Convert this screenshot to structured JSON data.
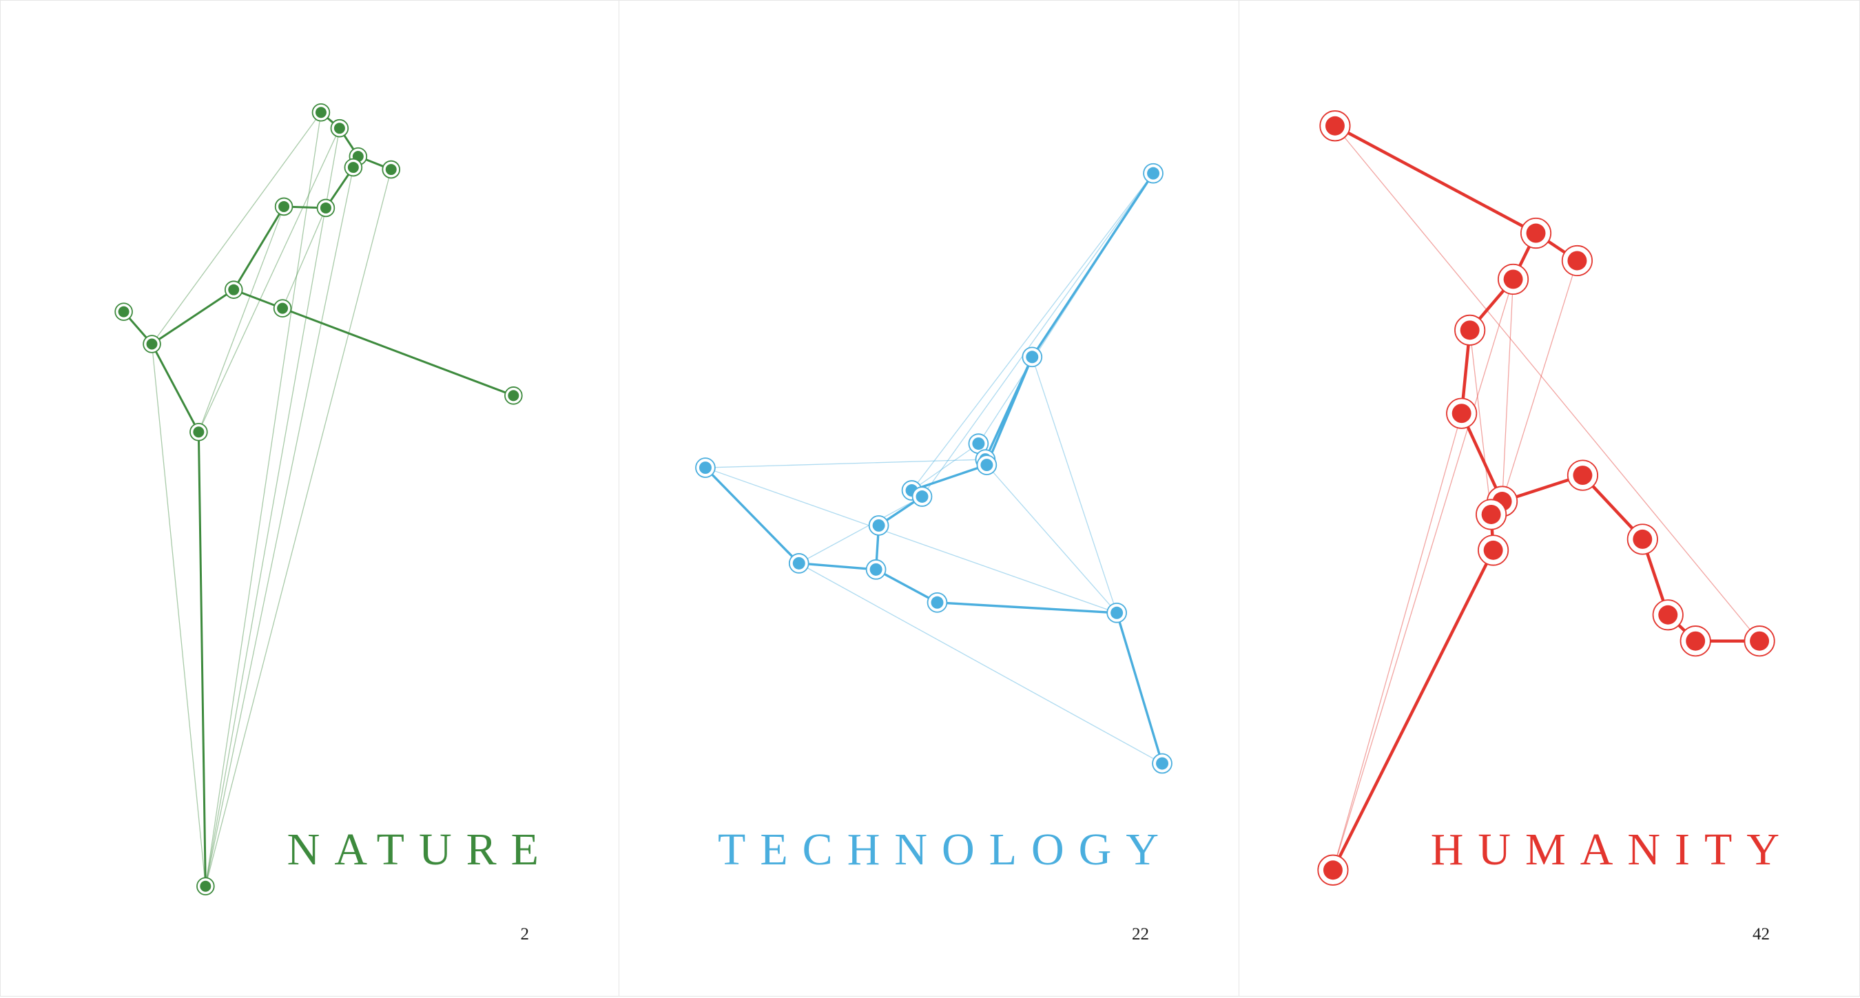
{
  "panels": [
    {
      "title": "NATURE",
      "page_number": "2",
      "color": "#3d8a3d"
    },
    {
      "title": "TECHNOLOGY",
      "page_number": "22",
      "color": "#4aaede"
    },
    {
      "title": "HUMANITY",
      "page_number": "42",
      "color": "#e3352e"
    }
  ]
}
